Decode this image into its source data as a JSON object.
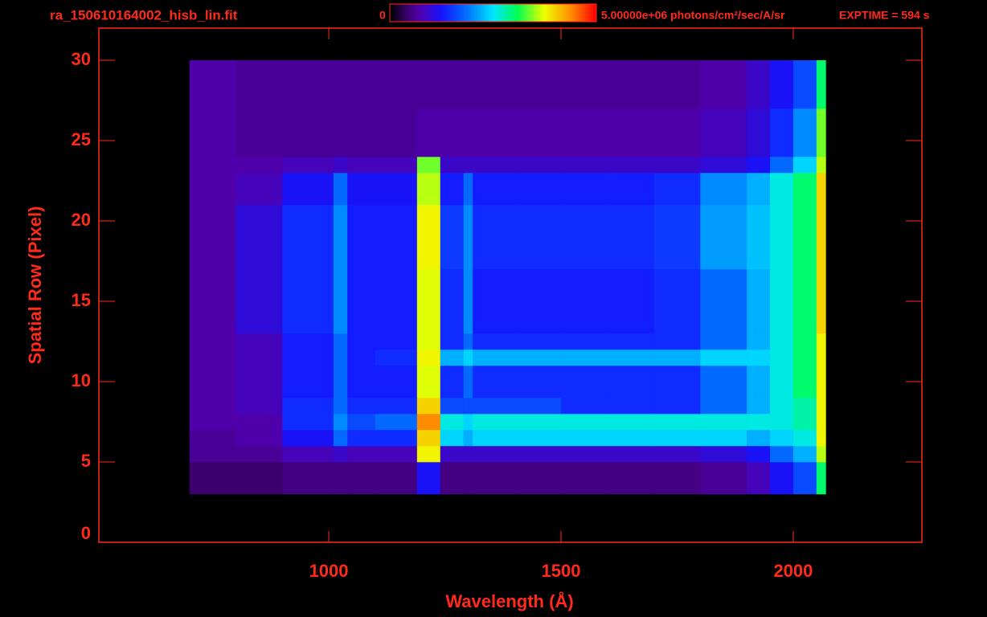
{
  "chart_data": {
    "type": "heatmap",
    "title": "ra_150610164002_hisb_lin.fit",
    "exposure": "EXPTIME = 594 s",
    "colormap": "rainbow",
    "colorbar": {
      "min": 0,
      "max": {
        "value": 5000000,
        "label": "5.00000e+06 photons/cm²/sec/A/sr"
      }
    },
    "x_label": "Wavelength (Å)",
    "y_label": "Spatial Row (Pixel)",
    "xlim": [
      505,
      2277
    ],
    "ylim": [
      0,
      32
    ],
    "xticks": [
      1000,
      1500,
      2000
    ],
    "yticks": [
      0,
      5,
      10,
      15,
      20,
      25,
      30
    ],
    "x_edges": [
      700,
      800,
      900,
      1000,
      1010,
      1040,
      1100,
      1190,
      1240,
      1290,
      1310,
      1400,
      1500,
      1600,
      1700,
      1800,
      1900,
      1950,
      2000,
      2050,
      2070
    ],
    "y_edges": [
      3,
      5,
      6,
      7,
      8,
      9,
      11,
      12,
      13,
      17,
      21,
      23,
      24,
      27,
      30
    ],
    "z": [
      [
        400000,
        400000,
        500000,
        500000,
        500000,
        500000,
        500000,
        1200000,
        500000,
        500000,
        500000,
        500000,
        500000,
        500000,
        500000,
        600000,
        800000,
        1200000,
        1600000,
        3000000
      ],
      [
        600000,
        600000,
        800000,
        800000,
        900000,
        800000,
        800000,
        3800000,
        900000,
        900000,
        900000,
        900000,
        900000,
        900000,
        900000,
        1000000,
        1200000,
        1800000,
        2200000,
        3600000
      ],
      [
        600000,
        700000,
        1200000,
        1200000,
        1800000,
        1400000,
        1400000,
        4000000,
        2400000,
        2200000,
        2400000,
        2400000,
        2400000,
        2400000,
        2400000,
        2400000,
        2200000,
        2400000,
        2600000,
        3800000
      ],
      [
        700000,
        700000,
        1400000,
        1400000,
        2000000,
        1600000,
        1800000,
        4400000,
        2600000,
        2400000,
        2600000,
        2600000,
        2600000,
        2600000,
        2600000,
        2600000,
        2600000,
        2600000,
        2800000,
        3800000
      ],
      [
        700000,
        800000,
        1400000,
        1400000,
        1800000,
        1400000,
        1400000,
        4000000,
        1600000,
        1600000,
        1600000,
        1600000,
        1400000,
        1400000,
        1400000,
        1800000,
        2200000,
        2600000,
        2800000,
        3800000
      ],
      [
        700000,
        800000,
        1300000,
        1300000,
        1800000,
        1300000,
        1300000,
        3700000,
        1400000,
        1800000,
        1400000,
        1400000,
        1400000,
        1400000,
        1400000,
        1800000,
        2200000,
        2600000,
        3000000,
        3800000
      ],
      [
        700000,
        800000,
        1300000,
        1300000,
        1800000,
        1300000,
        1400000,
        3800000,
        2200000,
        2400000,
        2200000,
        2200000,
        2200000,
        2200000,
        2200000,
        2400000,
        2400000,
        2600000,
        3000000,
        3800000
      ],
      [
        700000,
        800000,
        1300000,
        1300000,
        1800000,
        1300000,
        1300000,
        3700000,
        1400000,
        1800000,
        1400000,
        1400000,
        1400000,
        1400000,
        1400000,
        1800000,
        2200000,
        2600000,
        3000000,
        3800000
      ],
      [
        700000,
        1000000,
        1400000,
        1400000,
        2000000,
        1300000,
        1300000,
        3700000,
        1400000,
        2000000,
        1300000,
        1300000,
        1300000,
        1300000,
        1400000,
        1800000,
        2200000,
        2600000,
        3000000,
        4000000
      ],
      [
        700000,
        1000000,
        1400000,
        1400000,
        2000000,
        1300000,
        1300000,
        3800000,
        1500000,
        2000000,
        1400000,
        1400000,
        1400000,
        1400000,
        1500000,
        2100000,
        2300000,
        2600000,
        3000000,
        4000000
      ],
      [
        700000,
        800000,
        1200000,
        1200000,
        1800000,
        1200000,
        1200000,
        3600000,
        1300000,
        1800000,
        1300000,
        1300000,
        1300000,
        1300000,
        1400000,
        2000000,
        2200000,
        2600000,
        3000000,
        4000000
      ],
      [
        700000,
        700000,
        800000,
        800000,
        900000,
        800000,
        800000,
        3400000,
        900000,
        900000,
        900000,
        900000,
        900000,
        900000,
        900000,
        1000000,
        1200000,
        1800000,
        2400000,
        3600000
      ],
      [
        700000,
        600000,
        600000,
        600000,
        600000,
        600000,
        600000,
        700000,
        700000,
        700000,
        700000,
        700000,
        700000,
        700000,
        700000,
        800000,
        1000000,
        1400000,
        2000000,
        3400000
      ],
      [
        700000,
        600000,
        600000,
        600000,
        600000,
        600000,
        600000,
        600000,
        600000,
        600000,
        600000,
        600000,
        600000,
        600000,
        600000,
        700000,
        900000,
        1200000,
        1600000,
        3000000
      ]
    ]
  }
}
